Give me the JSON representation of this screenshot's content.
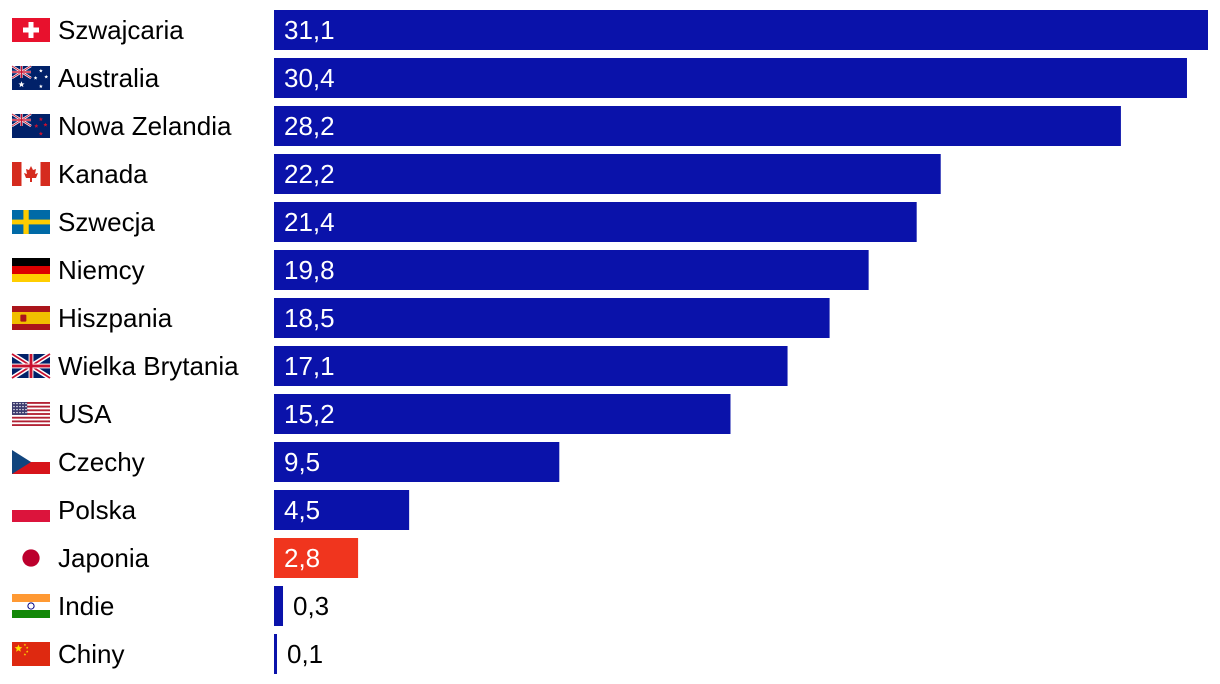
{
  "colors": {
    "bar": "#0a12aa",
    "highlight": "#f0351e",
    "label_inside": "#ffffff",
    "label_outside": "#000000"
  },
  "chart_data": {
    "type": "bar",
    "orientation": "horizontal",
    "title": "",
    "xlabel": "",
    "ylabel": "",
    "xlim": [
      0,
      31.1
    ],
    "grid": false,
    "legend": "none",
    "categories": [
      "Szwajcaria",
      "Australia",
      "Nowa Zelandia",
      "Kanada",
      "Szwecja",
      "Niemcy",
      "Hiszpania",
      "Wielka Brytania",
      "USA",
      "Czechy",
      "Polska",
      "Japonia",
      "Indie",
      "Chiny"
    ],
    "value_labels": [
      "31,1",
      "30,4",
      "28,2",
      "22,2",
      "21,4",
      "19,8",
      "18,5",
      "17,1",
      "15,2",
      "9,5",
      "4,5",
      "2,8",
      "0,3",
      "0,1"
    ],
    "values": [
      31.1,
      30.4,
      28.2,
      22.2,
      21.4,
      19.8,
      18.5,
      17.1,
      15.2,
      9.5,
      4.5,
      2.8,
      0.3,
      0.1
    ],
    "flags": [
      "switzerland-flag-icon",
      "australia-flag-icon",
      "new-zealand-flag-icon",
      "canada-flag-icon",
      "sweden-flag-icon",
      "germany-flag-icon",
      "spain-flag-icon",
      "uk-flag-icon",
      "usa-flag-icon",
      "czechia-flag-icon",
      "poland-flag-icon",
      "japan-flag-icon",
      "india-flag-icon",
      "china-flag-icon"
    ],
    "highlight_category": "Japonia"
  }
}
